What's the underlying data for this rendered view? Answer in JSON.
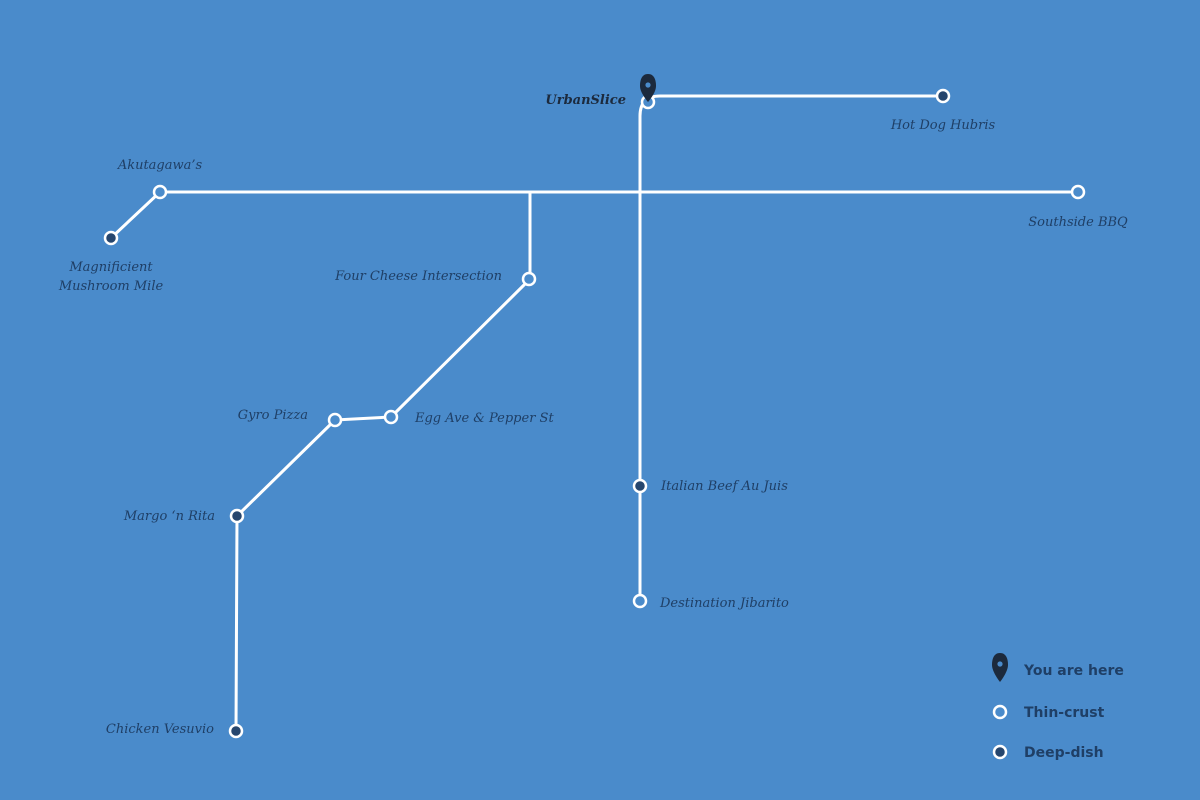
{
  "map": {
    "colors": {
      "background": "#4a8bcb",
      "route": "#ffffff",
      "thin_fill": "#4a8bcb",
      "deep_fill": "#26466e",
      "marker": "#1c2a3d",
      "label": "#1f3f66"
    },
    "stations": {
      "urbanslice": {
        "name": "UrbanSlice",
        "type": "thin-crust",
        "current": true
      },
      "hotdog": {
        "name": "Hot Dog Hubris",
        "type": "deep-dish"
      },
      "southside": {
        "name": "Southside BBQ",
        "type": "thin-crust"
      },
      "akutagawa": {
        "name": "Akutagawa’s",
        "type": "thin-crust"
      },
      "mushroom": {
        "name_line1": "Magnificient",
        "name_line2": "Mushroom Mile",
        "type": "deep-dish"
      },
      "fourcheese": {
        "name": "Four Cheese Intersection",
        "type": "thin-crust"
      },
      "egg": {
        "name": "Egg Ave & Pepper St",
        "type": "thin-crust"
      },
      "gyro": {
        "name": "Gyro Pizza",
        "type": "thin-crust"
      },
      "margo": {
        "name": "Margo ‘n Rita",
        "type": "deep-dish"
      },
      "chicken": {
        "name": "Chicken Vesuvio",
        "type": "deep-dish"
      },
      "italian": {
        "name": "Italian Beef Au Juis",
        "type": "deep-dish"
      },
      "jibarito": {
        "name": "Destination Jibarito",
        "type": "thin-crust"
      }
    }
  },
  "legend": {
    "here": {
      "label": "You are here",
      "icon": "map-pin-icon"
    },
    "thin": {
      "label": "Thin-crust",
      "icon": "hollow-circle-icon"
    },
    "deep": {
      "label": "Deep-dish",
      "icon": "filled-circle-icon"
    }
  }
}
